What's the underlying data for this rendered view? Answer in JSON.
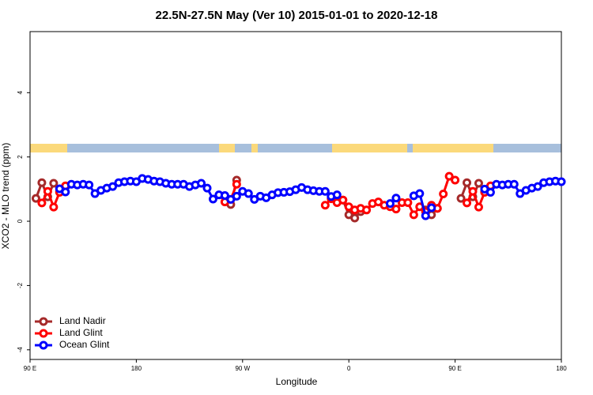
{
  "chart_data": {
    "type": "line",
    "title": "22.5N-27.5N May (Ver 10)   2015-01-01 to 2020-12-18",
    "xlabel": "Longitude",
    "ylabel": "XCO2 - MLO trend (ppm)",
    "xlim": [
      90,
      540
    ],
    "xticks": [
      {
        "value": 90,
        "label": "90 E"
      },
      180,
      {
        "value": 270,
        "label": "90 W"
      },
      {
        "value": 360,
        "label": "0"
      },
      {
        "value": 450,
        "label": "90 E"
      },
      {
        "value": 540,
        "label": "180"
      }
    ],
    "ylim": [
      -4.3,
      5.9
    ],
    "yticks": [
      -4,
      -2,
      0,
      2,
      4
    ],
    "legend": "bottom-left",
    "series": [
      {
        "name": "Land Nadir",
        "color": "#a52a2a",
        "x": [
          95,
          100,
          105,
          110,
          115,
          120,
          255,
          260,
          265,
          270,
          355,
          360,
          365,
          370,
          375,
          425,
          430,
          435,
          440,
          455,
          460,
          465,
          470,
          475
        ],
        "values": [
          0.71,
          1.2,
          0.76,
          1.18,
          0.93,
          null,
          0.76,
          0.52,
          1.28,
          null,
          0.66,
          0.2,
          0.1,
          0.3,
          null,
          0.35,
          0.2,
          0.4,
          null,
          0.71,
          1.2,
          0.76,
          1.18,
          0.93
        ]
      },
      {
        "name": "Land Glint",
        "color": "#ff0000",
        "x": [
          100,
          105,
          110,
          115,
          120,
          125,
          255,
          260,
          265,
          270,
          340,
          345,
          350,
          355,
          360,
          365,
          370,
          375,
          380,
          385,
          390,
          395,
          400,
          405,
          410,
          415,
          420,
          425,
          430,
          435,
          440,
          445,
          450,
          455,
          460,
          465,
          470,
          475,
          480
        ],
        "values": [
          0.57,
          0.93,
          0.44,
          0.9,
          1.1,
          null,
          0.6,
          0.68,
          1.15,
          null,
          0.5,
          0.7,
          0.58,
          0.66,
          0.45,
          0.35,
          0.4,
          0.35,
          0.55,
          0.6,
          0.5,
          0.45,
          0.38,
          0.58,
          0.58,
          0.2,
          0.45,
          0.3,
          0.5,
          0.4,
          0.85,
          1.4,
          1.28,
          null,
          0.57,
          0.93,
          0.44,
          0.9,
          1.1
        ]
      },
      {
        "name": "Ocean Glint",
        "color": "#0000ff",
        "x": [
          115,
          120,
          125,
          130,
          135,
          140,
          145,
          150,
          155,
          160,
          165,
          170,
          175,
          180,
          185,
          190,
          195,
          200,
          205,
          210,
          215,
          220,
          225,
          230,
          235,
          240,
          245,
          250,
          255,
          260,
          265,
          270,
          275,
          280,
          285,
          290,
          295,
          300,
          305,
          310,
          315,
          320,
          325,
          330,
          335,
          340,
          345,
          350,
          355,
          395,
          400,
          405,
          415,
          420,
          425,
          430,
          435,
          475,
          480,
          485,
          490,
          495,
          500,
          505,
          510,
          515,
          520,
          525,
          530,
          535,
          540
        ],
        "values": [
          1.01,
          0.91,
          1.15,
          1.13,
          1.15,
          1.13,
          0.86,
          0.96,
          1.03,
          1.08,
          1.2,
          1.23,
          1.25,
          1.23,
          1.33,
          1.3,
          1.25,
          1.23,
          1.18,
          1.15,
          1.15,
          1.15,
          1.08,
          1.13,
          1.18,
          1.03,
          0.69,
          0.82,
          0.8,
          0.68,
          0.78,
          0.93,
          0.86,
          0.68,
          0.78,
          0.73,
          0.82,
          0.89,
          0.9,
          0.92,
          0.98,
          1.05,
          0.98,
          0.95,
          0.93,
          0.93,
          0.77,
          0.82,
          null,
          0.55,
          0.72,
          null,
          0.79,
          0.86,
          0.17,
          0.42,
          null,
          1.0,
          0.9,
          1.15,
          1.13,
          1.15,
          1.15,
          0.86,
          0.96,
          1.03,
          1.08,
          1.2,
          1.23,
          1.25,
          1.23
        ]
      }
    ]
  }
}
